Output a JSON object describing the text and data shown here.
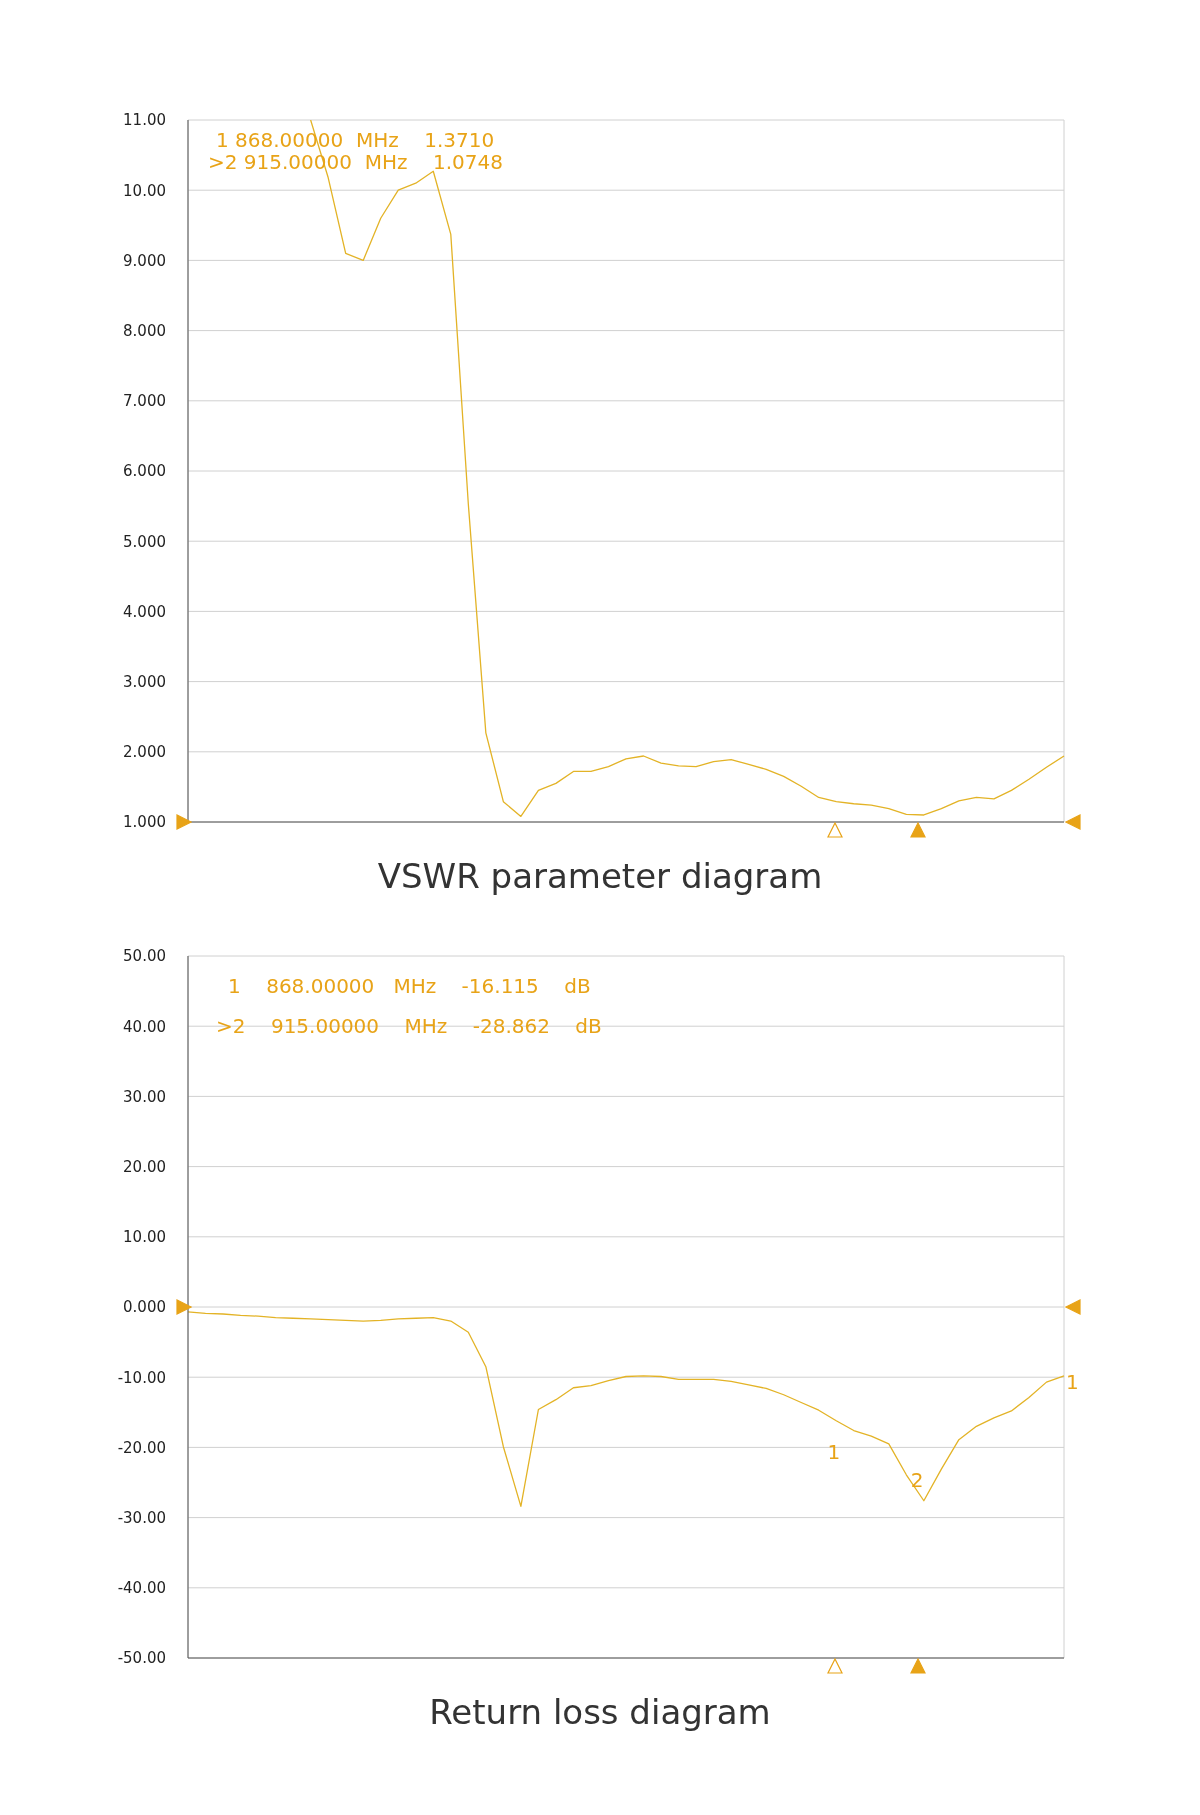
{
  "chart_data": [
    {
      "type": "line",
      "title": "VSWR parameter diagram",
      "categories": [
        null,
        null,
        null,
        null,
        null,
        null,
        null,
        null,
        null,
        null,
        null,
        null,
        null,
        null,
        null,
        null,
        null,
        null,
        null,
        null,
        null,
        null,
        null,
        null,
        null,
        null,
        null,
        null,
        null,
        null,
        null,
        null,
        null,
        null,
        null,
        null,
        null,
        null,
        null,
        null,
        null,
        null,
        null,
        null,
        null,
        null,
        null,
        null,
        null,
        null,
        null
      ],
      "series": [
        {
          "color": "#e3b326",
          "values": [
            null,
            null,
            null,
            null,
            null,
            null,
            null,
            11.0,
            10.18,
            9.1,
            9.0,
            9.6,
            10.0,
            10.1,
            10.27,
            9.37,
            5.53,
            2.27,
            1.29,
            1.08,
            1.45,
            1.55,
            1.72,
            1.72,
            1.79,
            1.9,
            1.94,
            1.84,
            1.8,
            1.79,
            1.86,
            1.89,
            1.82,
            1.75,
            1.65,
            1.51,
            1.35,
            1.29,
            1.26,
            1.24,
            1.19,
            1.11,
            1.1,
            1.19,
            1.3,
            1.35,
            1.33,
            1.45,
            1.61,
            1.78,
            1.94
          ]
        }
      ],
      "ylim": [
        1,
        11
      ],
      "yticks": [
        {
          "value": 1,
          "label": "1.000"
        },
        {
          "value": 2,
          "label": "2.000"
        },
        {
          "value": 3,
          "label": "3.000"
        },
        {
          "value": 4,
          "label": "4.000"
        },
        {
          "value": 5,
          "label": "5.000"
        },
        {
          "value": 6,
          "label": "6.000"
        },
        {
          "value": 7,
          "label": "7.000"
        },
        {
          "value": 8,
          "label": "8.000"
        },
        {
          "value": 9,
          "label": "9.000"
        },
        {
          "value": 10,
          "label": "10.00"
        },
        {
          "value": 11,
          "label": "11.00"
        }
      ],
      "grid": true,
      "tick_labels": "y",
      "annotations": [
        "1 868.00000  MHz    1.3710",
        ">2 915.00000  MHz    1.0748"
      ]
    },
    {
      "type": "line",
      "title": "Return loss diagram",
      "categories": [
        null,
        null,
        null,
        null,
        null,
        null,
        null,
        null,
        null,
        null,
        null,
        null,
        null,
        null,
        null,
        null,
        null,
        null,
        null,
        null,
        null,
        null,
        null,
        null,
        null,
        null,
        null,
        null,
        null,
        null,
        null,
        null,
        null,
        null,
        null,
        null,
        null,
        null,
        null,
        null,
        null,
        null,
        null,
        null,
        null,
        null,
        null,
        null,
        null,
        null,
        null
      ],
      "series": [
        {
          "color": "#e3b326",
          "values": [
            -0.7,
            -0.9,
            -1.0,
            -1.2,
            -1.3,
            -1.5,
            -1.6,
            -1.7,
            -1.8,
            -1.9,
            -2.0,
            -1.9,
            -1.7,
            -1.6,
            -1.5,
            -2.0,
            -3.6,
            -8.5,
            -19.9,
            -28.4,
            -14.6,
            -13.2,
            -11.5,
            -11.2,
            -10.5,
            -9.9,
            -9.8,
            -9.9,
            -10.3,
            -10.3,
            -10.3,
            -10.6,
            -11.1,
            -11.6,
            -12.5,
            -13.6,
            -14.7,
            -16.2,
            -17.6,
            -18.4,
            -19.5,
            -23.9,
            -27.6,
            -23.1,
            -18.9,
            -17.0,
            -15.8,
            -14.8,
            -12.9,
            -10.7,
            -9.8
          ]
        }
      ],
      "ylim": [
        -50,
        50
      ],
      "yticks": [
        {
          "value": -50,
          "label": "-50.00"
        },
        {
          "value": -40,
          "label": "-40.00"
        },
        {
          "value": -30,
          "label": "-30.00"
        },
        {
          "value": -20,
          "label": "-20.00"
        },
        {
          "value": -10,
          "label": "-10.00"
        },
        {
          "value": 0,
          "label": "0.000"
        },
        {
          "value": 10,
          "label": "10.00"
        },
        {
          "value": 20,
          "label": "20.00"
        },
        {
          "value": 30,
          "label": "30.00"
        },
        {
          "value": 40,
          "label": "40.00"
        },
        {
          "value": 50,
          "label": "50.00"
        }
      ],
      "grid": true,
      "tick_labels": "y",
      "annotations": [
        "1    868.00000   MHz    -16.115    dB",
        ">2    915.00000    MHz    -28.862    dB",
        "1",
        "2",
        "1"
      ]
    }
  ]
}
